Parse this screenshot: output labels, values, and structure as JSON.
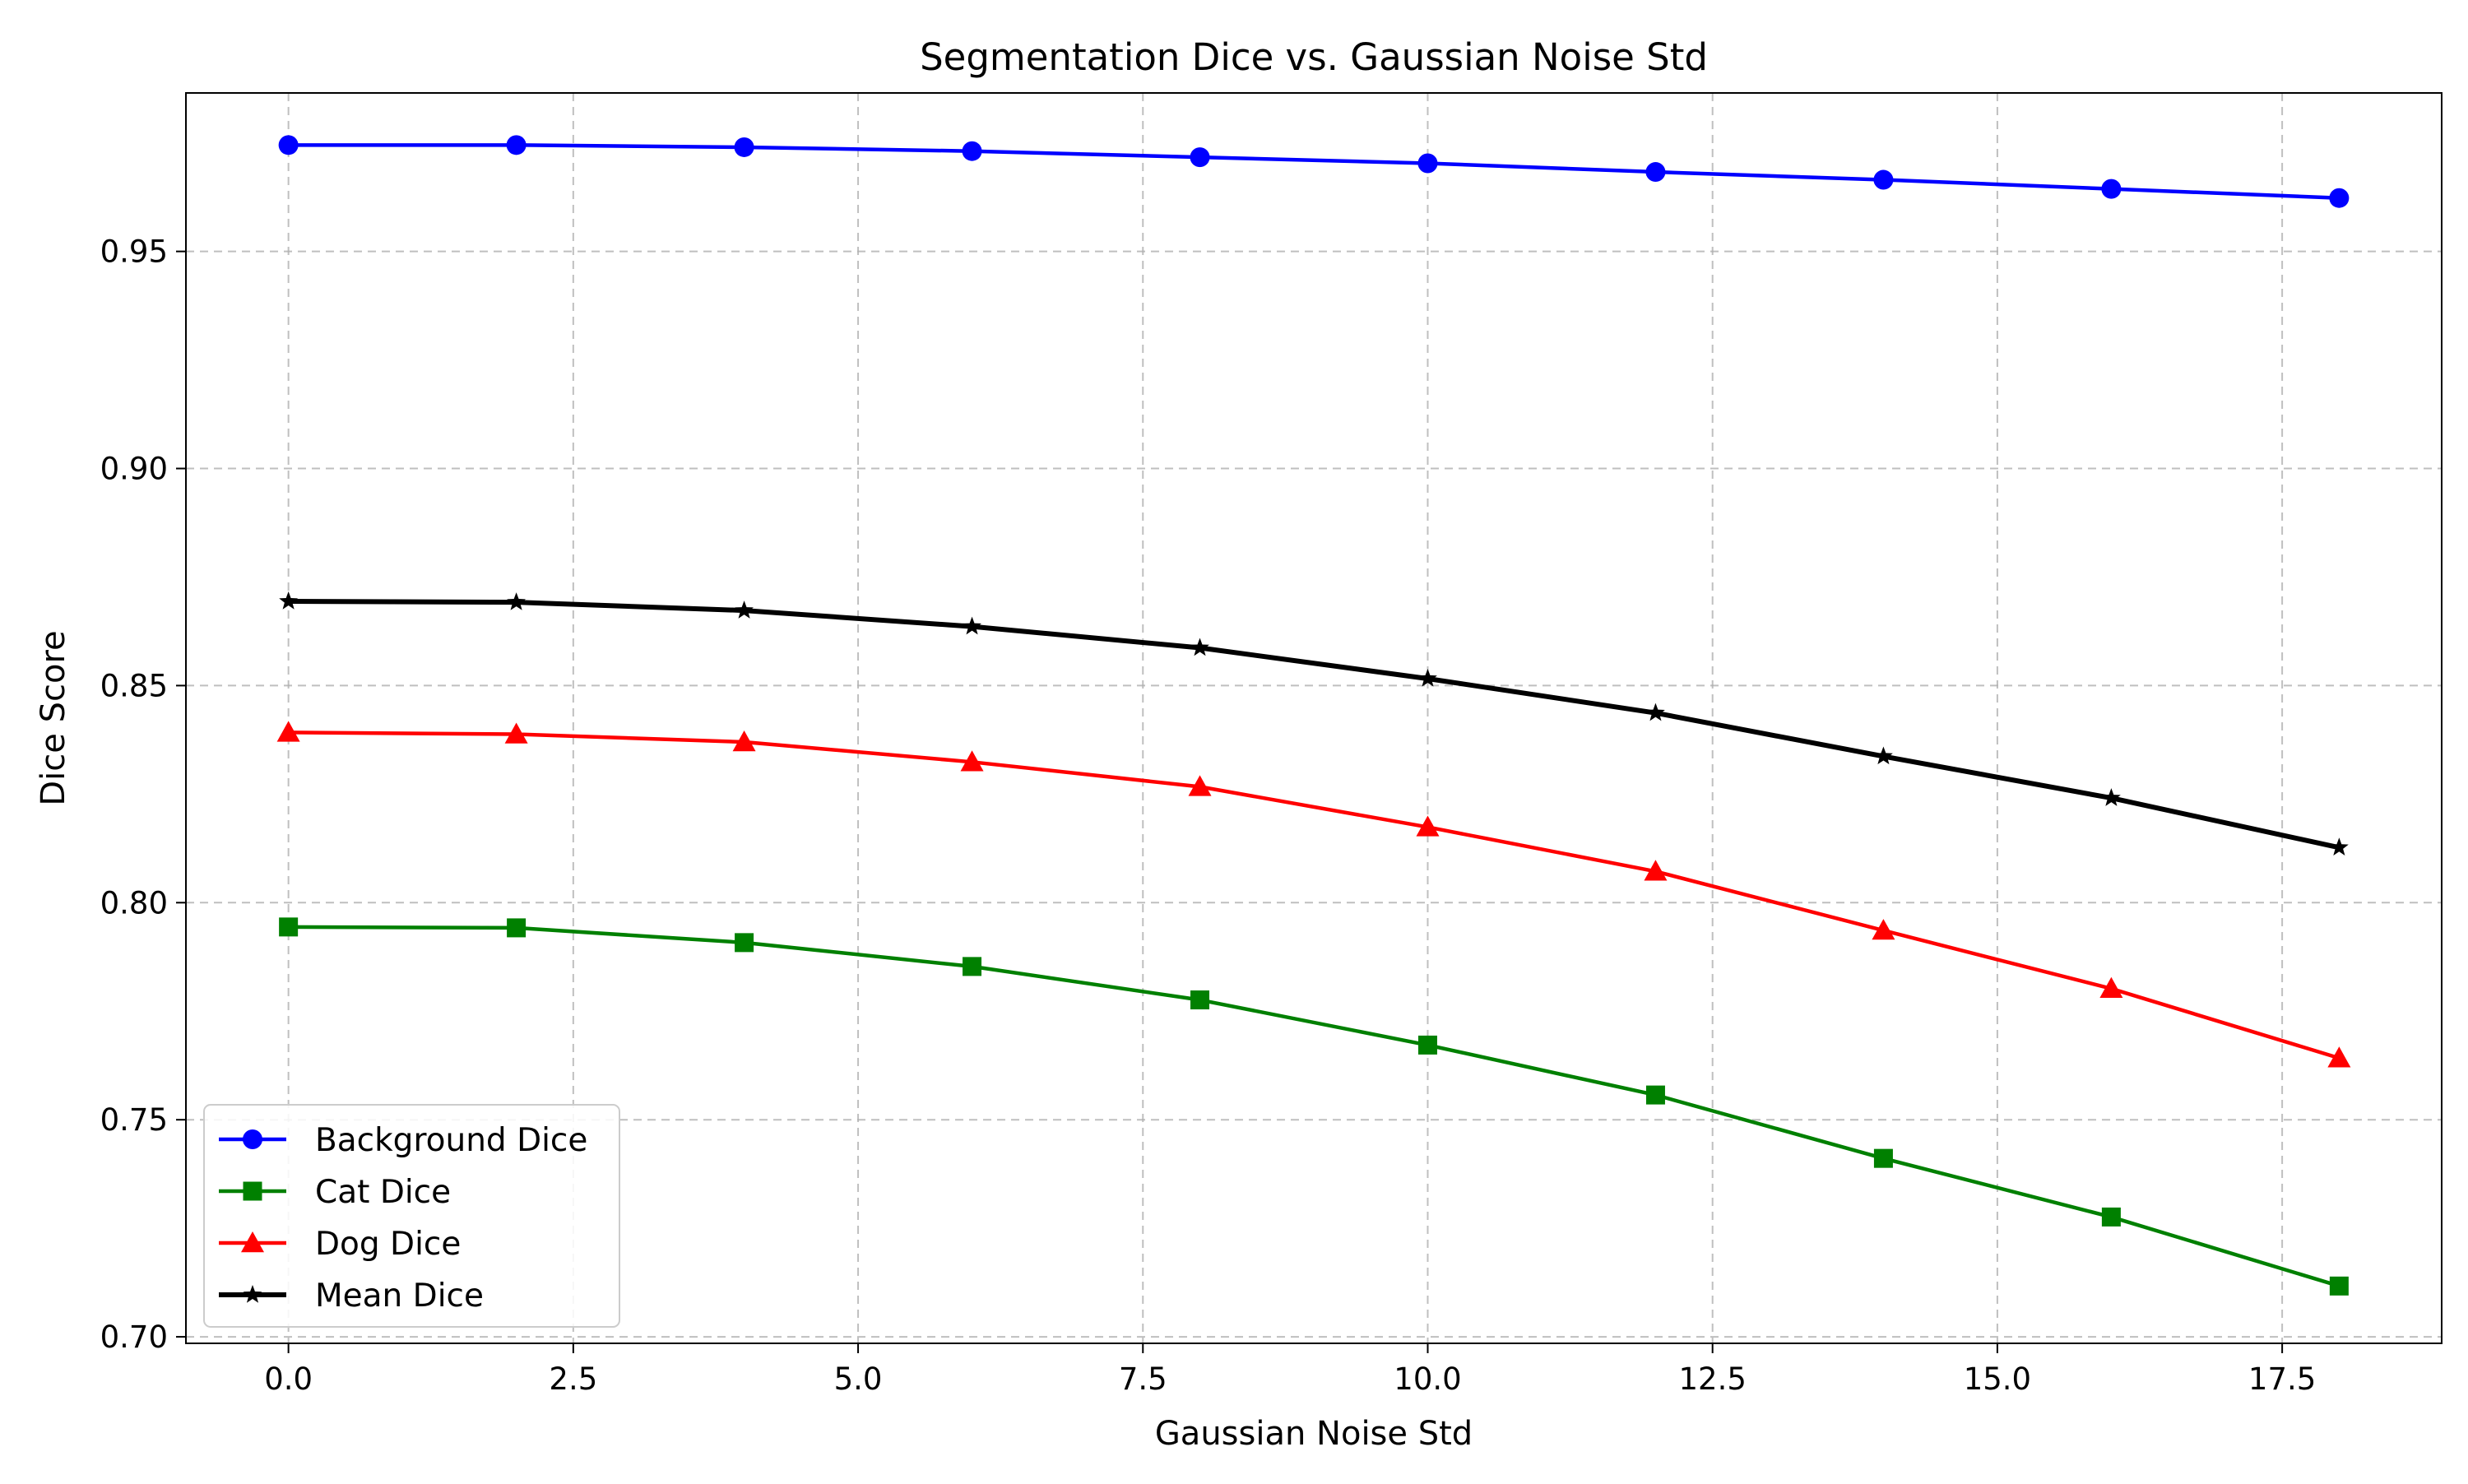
{
  "chart_data": {
    "type": "line",
    "title": "Segmentation Dice vs. Gaussian Noise Std",
    "xlabel": "Gaussian Noise Std",
    "ylabel": "Dice Score",
    "xlim": [
      -0.9,
      18.9
    ],
    "ylim": [
      0.6985,
      0.9865
    ],
    "xticks": [
      0.0,
      2.5,
      5.0,
      7.5,
      10.0,
      12.5,
      15.0,
      17.5
    ],
    "xtick_labels": [
      "0.0",
      "2.5",
      "5.0",
      "7.5",
      "10.0",
      "12.5",
      "15.0",
      "17.5"
    ],
    "yticks": [
      0.7,
      0.75,
      0.8,
      0.85,
      0.9,
      0.95
    ],
    "ytick_labels": [
      "0.70",
      "0.75",
      "0.80",
      "0.85",
      "0.90",
      "0.95"
    ],
    "grid": true,
    "grid_style": "dashed",
    "legend_position": "lower-left",
    "x": [
      0,
      2,
      4,
      6,
      8,
      10,
      12,
      14,
      16,
      18
    ],
    "series": [
      {
        "name": "Background Dice",
        "color": "#0000ff",
        "marker": "circle",
        "values": [
          0.9745,
          0.9745,
          0.974,
          0.9731,
          0.9717,
          0.9703,
          0.9683,
          0.9665,
          0.9644,
          0.9623
        ]
      },
      {
        "name": "Cat Dice",
        "color": "#008000",
        "marker": "square",
        "values": [
          0.7944,
          0.7942,
          0.7908,
          0.7853,
          0.7776,
          0.7672,
          0.7557,
          0.7411,
          0.7276,
          0.7117
        ]
      },
      {
        "name": "Dog Dice",
        "color": "#ff0000",
        "marker": "triangle",
        "values": [
          0.8392,
          0.8388,
          0.837,
          0.8324,
          0.8267,
          0.8174,
          0.8072,
          0.7936,
          0.7802,
          0.7642
        ]
      },
      {
        "name": "Mean Dice",
        "color": "#000000",
        "marker": "star",
        "values": [
          0.8694,
          0.8692,
          0.8673,
          0.8636,
          0.8587,
          0.8516,
          0.8437,
          0.8337,
          0.8241,
          0.8127
        ]
      }
    ]
  }
}
